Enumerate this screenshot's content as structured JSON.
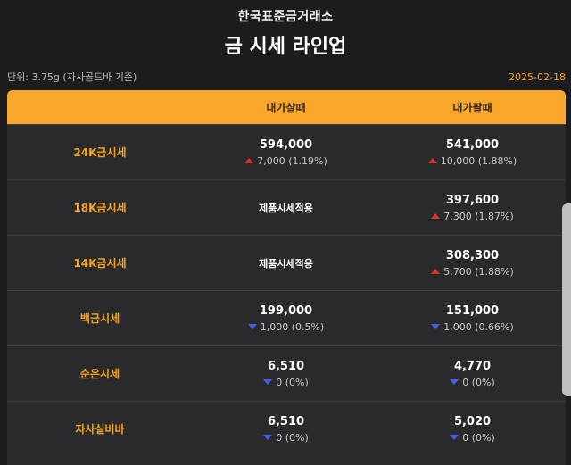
{
  "header": {
    "brand": "한국표준금거래소",
    "title": "금 시세 라인업"
  },
  "meta": {
    "unit": "단위: 3.75g (자사골드바 기준)",
    "date": "2025-02-18"
  },
  "columns": {
    "label": "",
    "buy": "내가살때",
    "sell": "내가팔때"
  },
  "rows": [
    {
      "label": "24K금시세",
      "buy": {
        "price": "594,000",
        "change": "7,000 (1.19%)",
        "direction": "up"
      },
      "sell": {
        "price": "541,000",
        "change": "10,000 (1.88%)",
        "direction": "up"
      }
    },
    {
      "label": "18K금시세",
      "buy": {
        "note": "제품시세적용"
      },
      "sell": {
        "price": "397,600",
        "change": "7,300 (1.87%)",
        "direction": "up"
      }
    },
    {
      "label": "14K금시세",
      "buy": {
        "note": "제품시세적용"
      },
      "sell": {
        "price": "308,300",
        "change": "5,700 (1.88%)",
        "direction": "up"
      }
    },
    {
      "label": "백금시세",
      "buy": {
        "price": "199,000",
        "change": "1,000 (0.5%)",
        "direction": "down"
      },
      "sell": {
        "price": "151,000",
        "change": "1,000 (0.66%)",
        "direction": "down"
      }
    },
    {
      "label": "순은시세",
      "buy": {
        "price": "6,510",
        "change": "0 (0%)",
        "direction": "down"
      },
      "sell": {
        "price": "4,770",
        "change": "0 (0%)",
        "direction": "down"
      }
    },
    {
      "label": "자사실버바",
      "buy": {
        "price": "6,510",
        "change": "0 (0%)",
        "direction": "down"
      },
      "sell": {
        "price": "5,020",
        "change": "0 (0%)",
        "direction": "down"
      }
    }
  ],
  "colors": {
    "accent": "#f9a72b",
    "up": "#e03131",
    "down": "#4a5bf0",
    "background": "#1c1c1e"
  }
}
